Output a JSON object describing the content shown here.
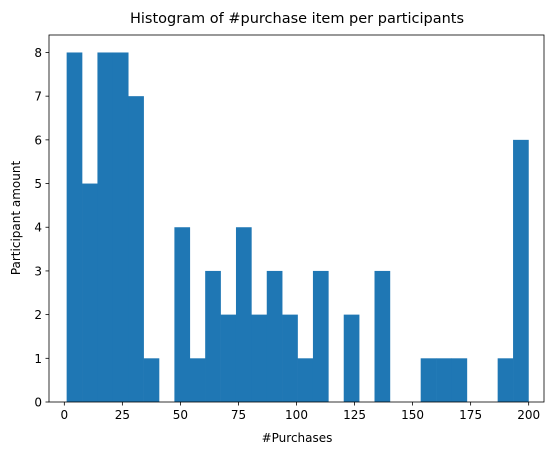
{
  "chart_data": {
    "type": "bar",
    "title": "Histogram of #purchase item per participants",
    "xlabel": "#Purchases",
    "ylabel": "Participant amount",
    "xlim": [
      -6.6,
      206.6
    ],
    "ylim": [
      0,
      8.4
    ],
    "xticks": [
      0,
      25,
      50,
      75,
      100,
      125,
      150,
      175,
      200
    ],
    "yticks": [
      0,
      1,
      2,
      3,
      4,
      5,
      6,
      7,
      8
    ],
    "grid": false,
    "bar_color": "#1f77b4",
    "bins": {
      "start": 1,
      "width": 6.63,
      "counts": [
        8,
        5,
        8,
        8,
        7,
        1,
        0,
        4,
        1,
        3,
        2,
        4,
        2,
        3,
        2,
        1,
        3,
        0,
        2,
        0,
        3,
        0,
        0,
        1,
        1,
        1,
        0,
        0,
        1,
        6
      ]
    }
  }
}
